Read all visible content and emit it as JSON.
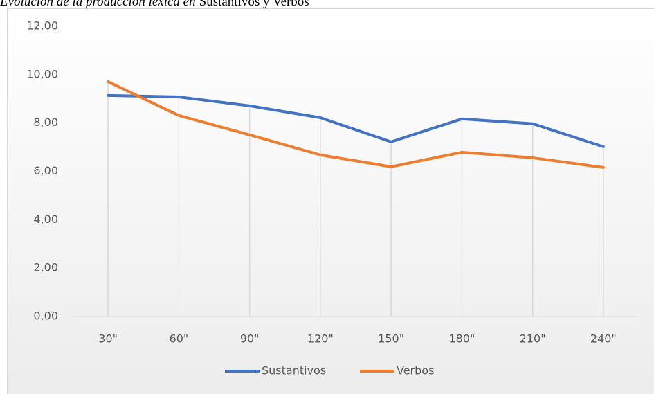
{
  "chart_data": {
    "type": "line",
    "title": [
      "Evolución de la producción léxica en",
      "Sustantivos y Verbos"
    ],
    "categories": [
      "30\"",
      "60\"",
      "90\"",
      "120\"",
      "150\"",
      "180\"",
      "210\"",
      "240\""
    ],
    "series": [
      {
        "name": "Sustantivos",
        "color": "#4472c4",
        "values": [
          9.14,
          9.08,
          8.71,
          8.22,
          7.22,
          8.17,
          7.97,
          7.02
        ]
      },
      {
        "name": "Verbos",
        "color": "#ed7d31",
        "values": [
          9.71,
          8.31,
          7.51,
          6.68,
          6.19,
          6.79,
          6.56,
          6.16
        ]
      }
    ],
    "ylim": [
      0,
      12
    ],
    "yticks": [
      {
        "value": 0,
        "label": "0,00"
      },
      {
        "value": 2,
        "label": "2,00"
      },
      {
        "value": 4,
        "label": "4,00"
      },
      {
        "value": 6,
        "label": "6,00"
      },
      {
        "value": 8,
        "label": "8,00"
      },
      {
        "value": 10,
        "label": "10,00"
      },
      {
        "value": 12,
        "label": "12,00"
      }
    ],
    "drop_lines": true,
    "legend": "bottom"
  }
}
